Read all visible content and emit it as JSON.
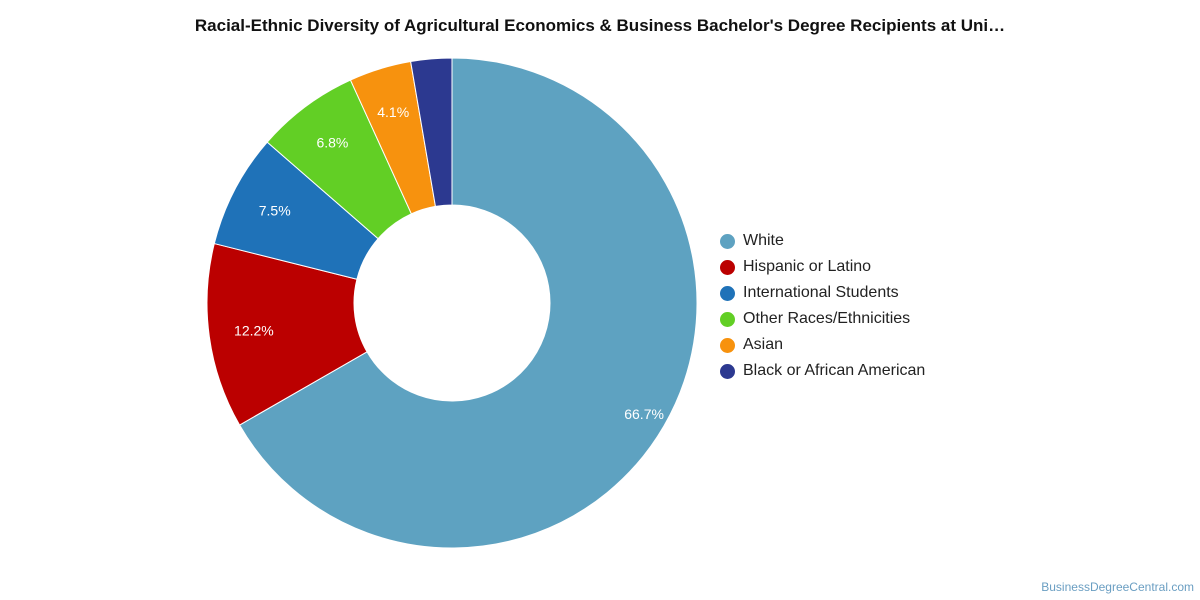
{
  "chart_data": {
    "type": "pie",
    "style": "donut",
    "title": "Racial-Ethnic Diversity of Agricultural Economics & Business Bachelor's Degree Recipients at Uni…",
    "legend_position": "right",
    "slices": [
      {
        "name": "White",
        "value": 66.7,
        "label": "66.7%",
        "color": "#5ea2c1"
      },
      {
        "name": "Hispanic or Latino",
        "value": 12.2,
        "label": "12.2%",
        "color": "#bb0000"
      },
      {
        "name": "International Students",
        "value": 7.5,
        "label": "7.5%",
        "color": "#1f72b8"
      },
      {
        "name": "Other Races/Ethnicities",
        "value": 6.8,
        "label": "6.8%",
        "color": "#62cf25"
      },
      {
        "name": "Asian",
        "value": 4.1,
        "label": "4.1%",
        "color": "#f7920e"
      },
      {
        "name": "Black or African American",
        "value": 2.7,
        "label": "",
        "color": "#2c3990"
      }
    ]
  },
  "footer": {
    "credit": "BusinessDegreeCentral.com"
  }
}
